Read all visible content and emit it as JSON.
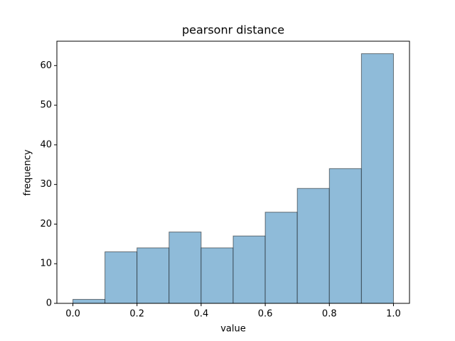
{
  "chart_data": {
    "type": "histogram",
    "title": "pearsonr distance",
    "x_label": "value",
    "y_label": "frequency",
    "bins": [
      0.0,
      0.1,
      0.2,
      0.3,
      0.4,
      0.5,
      0.6,
      0.7,
      0.8,
      0.9,
      1.0
    ],
    "values": [
      1,
      13,
      14,
      18,
      14,
      17,
      23,
      29,
      34,
      63
    ],
    "color": "#8fbbd9",
    "xlim": [
      -0.05,
      1.05
    ],
    "xticks": [
      {
        "value": 0,
        "label": "0.0"
      },
      {
        "value": 0.2,
        "label": "0.2"
      },
      {
        "value": 0.4,
        "label": "0.4"
      },
      {
        "value": 0.6,
        "label": "0.6"
      },
      {
        "value": 0.8,
        "label": "0.8"
      },
      {
        "value": 1,
        "label": "1.0"
      }
    ],
    "ylim": [
      0,
      66.15
    ],
    "yticks": [
      0,
      10,
      20,
      30,
      40,
      50,
      60
    ]
  }
}
